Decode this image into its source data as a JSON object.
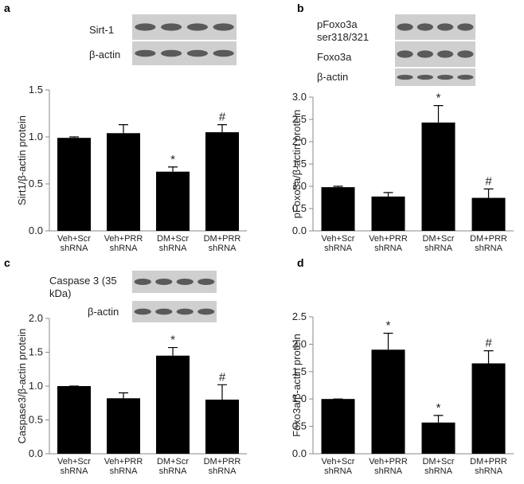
{
  "chart_data": [
    {
      "type": "bar",
      "panel": "a",
      "ylabel": "Sirt1/β-actin protein",
      "blots": [
        "Sirt-1",
        "β-actin"
      ],
      "categories": [
        "Veh+Scr shRNA",
        "Veh+PRR shRNA",
        "DM+Scr shRNA",
        "DM+PRR shRNA"
      ],
      "values": [
        0.99,
        1.04,
        0.63,
        1.05
      ],
      "errors": [
        0.01,
        0.09,
        0.05,
        0.08
      ],
      "markers": [
        null,
        null,
        "*",
        "#"
      ],
      "color": "#000000",
      "ylim": [
        0,
        1.5
      ],
      "yticks": [
        {
          "value": 0,
          "label": "0.0"
        },
        {
          "value": 0.5,
          "label": "0.5"
        },
        {
          "value": 1,
          "label": "1.0"
        },
        {
          "value": 1.5,
          "label": "1.5"
        }
      ]
    },
    {
      "type": "bar",
      "panel": "b",
      "ylabel": "pFoxo3a/β-actin protein",
      "blots": [
        "pFoxo3a ser318/321",
        "Foxo3a",
        "β-actin"
      ],
      "categories": [
        "Veh+Scr shRNA",
        "Veh+PRR shRNA",
        "DM+Scr shRNA",
        "DM+PRR shRNA"
      ],
      "values": [
        0.98,
        0.77,
        2.43,
        0.74
      ],
      "errors": [
        0.02,
        0.09,
        0.38,
        0.2
      ],
      "markers": [
        null,
        null,
        "*",
        "#"
      ],
      "color": "#000000",
      "ylim": [
        0,
        3
      ],
      "yticks": [
        {
          "value": 0,
          "label": "0.0"
        },
        {
          "value": 0.5,
          "label": "0.5"
        },
        {
          "value": 1,
          "label": "1.0"
        },
        {
          "value": 1.5,
          "label": "1.5"
        },
        {
          "value": 2,
          "label": "2.0"
        },
        {
          "value": 2.5,
          "label": "2.5"
        },
        {
          "value": 3,
          "label": "3.0"
        }
      ]
    },
    {
      "type": "bar",
      "panel": "c",
      "ylabel": "Caspase3/β-actin protein",
      "blots": [
        "Caspase 3 (35 kDa)",
        "β-actin"
      ],
      "categories": [
        "Veh+Scr shRNA",
        "Veh+PRR shRNA",
        "DM+Scr shRNA",
        "DM+PRR shRNA"
      ],
      "values": [
        1.0,
        0.82,
        1.45,
        0.8
      ],
      "errors": [
        0,
        0.08,
        0.12,
        0.22
      ],
      "markers": [
        null,
        null,
        "*",
        "#"
      ],
      "color": "#000000",
      "ylim": [
        0,
        2
      ],
      "yticks": [
        {
          "value": 0,
          "label": "0.0"
        },
        {
          "value": 0.5,
          "label": "0.5"
        },
        {
          "value": 1,
          "label": "1.0"
        },
        {
          "value": 1.5,
          "label": "1.5"
        },
        {
          "value": 2,
          "label": "2.0"
        }
      ]
    },
    {
      "type": "bar",
      "panel": "d",
      "ylabel": "Foxo3a/β-actin protein",
      "categories": [
        "Veh+Scr shRNA",
        "Veh+PRR shRNA",
        "DM+Scr shRNA",
        "DM+PRR shRNA"
      ],
      "values": [
        1.0,
        1.9,
        0.57,
        1.65
      ],
      "errors": [
        0,
        0.3,
        0.13,
        0.23
      ],
      "markers": [
        null,
        "*",
        "*",
        "#"
      ],
      "color": "#000000",
      "ylim": [
        0,
        2.5
      ],
      "yticks": [
        {
          "value": 0,
          "label": "0.0"
        },
        {
          "value": 0.5,
          "label": "0.5"
        },
        {
          "value": 1,
          "label": "1.0"
        },
        {
          "value": 1.5,
          "label": "1.5"
        },
        {
          "value": 2,
          "label": "2.0"
        },
        {
          "value": 2.5,
          "label": "2.5"
        }
      ]
    }
  ]
}
